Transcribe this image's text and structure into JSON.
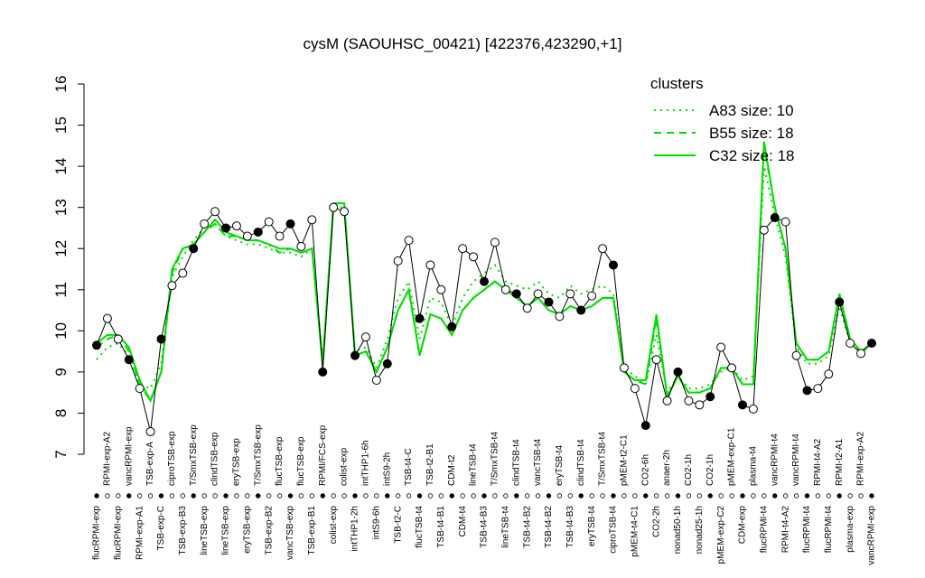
{
  "chart_data": {
    "type": "line",
    "title": "cysM (SAOUHSC_00421) [422376,423290,+1]",
    "categories": [
      "flucRPMI-exp",
      "RPMI-exp-A2",
      "flucRPMI-exp",
      "vancRPMI-exp",
      "RPMI-exp-A1",
      "TSB-exp-A",
      "TSB-exp-C",
      "ciproTSB-exp",
      "TSB-exp-B3",
      "T/SmxTSB-exp",
      "lineTSB-exp",
      "clindTSB-exp",
      "lineTSB-exp",
      "eryTSB-exp",
      "eryTSB-exp",
      "T/SmxTSB-exp",
      "TSB-exp-B2",
      "flucTSB-exp",
      "vancTSB-exp",
      "flucTSB-exp",
      "TSB-exp-B1",
      "RPMI/FCS-exp",
      "colist-exp",
      "colist-exp",
      "intTHP1-2h",
      "intTHP1-6h",
      "intS9-6h",
      "intS9-2h",
      "TSB-t2-C",
      "TSB-t4-C",
      "flucTSB-t4",
      "TSB-t2-B1",
      "TSB-t4-B1",
      "CDM-t2",
      "CDM-t4",
      "lineTSB-t4",
      "TSB-t4-B3",
      "T/SmxTSB-t4",
      "lineTSB-t4",
      "clindTSB-t4",
      "TSB-t4-B2",
      "vancTSB-t4",
      "TSB-t4-B2",
      "eryTSB-t4",
      "TSB-t4-B3",
      "clindTSB-t4",
      "eryTSB-t4",
      "T/SmxTSB-t4",
      "ciproTSB-t4",
      "pMEM-t2-C1",
      "pMEM-t4-C1",
      "CO2-6h",
      "CO2-2h",
      "anaer-2h",
      "nonad50-1h",
      "CO2-1h",
      "nonad25-1h",
      "CO2-1h",
      "pMEM-exp-C2",
      "pMEM-exp-C1",
      "CDM-exp",
      "plasma-t4",
      "flucRPMI-t4",
      "vancRPMI-t4",
      "RPMI-t4-A2",
      "vancRPMI-t4",
      "flucRPMI-t4",
      "RPMI-t4-A2",
      "flucRPMI-t4",
      "RPMI-t2-A1",
      "plasma-exp",
      "RPMI-exp-A2",
      "vancRPMI-exp"
    ],
    "values": [
      9.65,
      10.3,
      9.8,
      9.3,
      8.6,
      7.55,
      9.8,
      11.1,
      11.4,
      12.0,
      12.6,
      12.9,
      12.5,
      12.55,
      12.3,
      12.4,
      12.65,
      12.3,
      12.6,
      12.05,
      12.7,
      9.0,
      13.0,
      12.9,
      9.4,
      9.85,
      8.8,
      9.2,
      11.7,
      12.2,
      10.3,
      11.6,
      11.0,
      10.1,
      12.0,
      11.8,
      11.2,
      12.15,
      11.0,
      10.9,
      10.55,
      10.9,
      10.7,
      10.35,
      10.9,
      10.5,
      10.85,
      12.0,
      11.6,
      9.1,
      8.6,
      7.7,
      9.3,
      8.3,
      9.0,
      8.3,
      8.2,
      8.4,
      9.6,
      9.1,
      8.2,
      8.1,
      12.45,
      12.75,
      12.65,
      9.4,
      8.55,
      8.6,
      8.95,
      10.7,
      9.7,
      9.45,
      9.7
    ],
    "point_color": "#000000",
    "series": [
      {
        "name": "A83 size: 10",
        "color": "#00dd00",
        "dash": "dotted",
        "values": [
          9.3,
          9.6,
          9.7,
          9.4,
          8.7,
          8.6,
          9.2,
          11.3,
          11.8,
          12.2,
          12.5,
          12.6,
          12.3,
          12.2,
          12.1,
          12.1,
          12.0,
          11.9,
          11.9,
          11.8,
          12.0,
          9.3,
          13.0,
          13.0,
          9.5,
          9.6,
          9.1,
          9.8,
          10.8,
          11.2,
          9.8,
          10.8,
          10.7,
          10.1,
          10.8,
          11.2,
          11.4,
          11.6,
          11.2,
          11.1,
          11.0,
          11.2,
          10.9,
          10.8,
          11.1,
          10.9,
          11.0,
          11.1,
          10.9,
          9.1,
          8.9,
          8.7,
          9.9,
          8.5,
          8.9,
          8.6,
          8.6,
          8.7,
          9.0,
          9.1,
          8.8,
          8.9,
          14.0,
          12.8,
          11.8,
          9.6,
          9.2,
          9.2,
          9.4,
          10.6,
          9.7,
          9.5,
          9.7
        ]
      },
      {
        "name": "B55 size: 18",
        "color": "#00dd00",
        "dash": "dashed",
        "values": [
          9.6,
          9.8,
          9.9,
          9.5,
          8.7,
          8.3,
          9.0,
          11.4,
          12.0,
          12.1,
          12.4,
          12.6,
          12.3,
          12.3,
          12.2,
          12.2,
          12.1,
          11.9,
          12.0,
          11.9,
          12.0,
          9.2,
          13.1,
          13.1,
          9.4,
          9.5,
          9.0,
          9.6,
          10.5,
          11.0,
          9.4,
          10.4,
          10.3,
          9.9,
          10.5,
          10.8,
          11.0,
          11.2,
          11.0,
          10.8,
          10.6,
          10.8,
          10.5,
          10.4,
          10.6,
          10.5,
          10.6,
          10.8,
          10.8,
          9.0,
          8.8,
          8.7,
          10.3,
          8.4,
          8.9,
          8.5,
          8.5,
          8.6,
          9.1,
          9.1,
          8.7,
          8.7,
          14.5,
          13.0,
          12.0,
          9.7,
          9.3,
          9.3,
          9.5,
          10.9,
          9.8,
          9.5,
          9.7
        ]
      },
      {
        "name": "C32 size: 18",
        "color": "#00dd00",
        "dash": "solid",
        "values": [
          9.7,
          9.9,
          9.9,
          9.6,
          8.8,
          8.3,
          9.0,
          11.5,
          12.0,
          12.1,
          12.4,
          12.7,
          12.4,
          12.3,
          12.2,
          12.2,
          12.1,
          12.0,
          12.0,
          11.9,
          12.0,
          9.2,
          13.1,
          13.1,
          9.4,
          9.5,
          9.0,
          9.6,
          10.5,
          11.0,
          9.4,
          10.4,
          10.3,
          9.9,
          10.5,
          10.8,
          11.0,
          11.2,
          11.0,
          10.8,
          10.6,
          10.8,
          10.5,
          10.4,
          10.6,
          10.5,
          10.6,
          10.8,
          10.8,
          9.0,
          8.8,
          8.8,
          10.4,
          8.4,
          8.9,
          8.5,
          8.5,
          8.6,
          9.1,
          9.1,
          8.7,
          8.7,
          14.6,
          13.0,
          12.0,
          9.7,
          9.3,
          9.3,
          9.5,
          10.9,
          9.8,
          9.5,
          9.7
        ]
      }
    ],
    "ylim": [
      7,
      16
    ],
    "yticks": [
      7,
      8,
      9,
      10,
      11,
      12,
      13,
      14,
      15,
      16
    ],
    "legend": {
      "title": "clusters",
      "position": "top-right",
      "color": "#00dd00"
    }
  }
}
